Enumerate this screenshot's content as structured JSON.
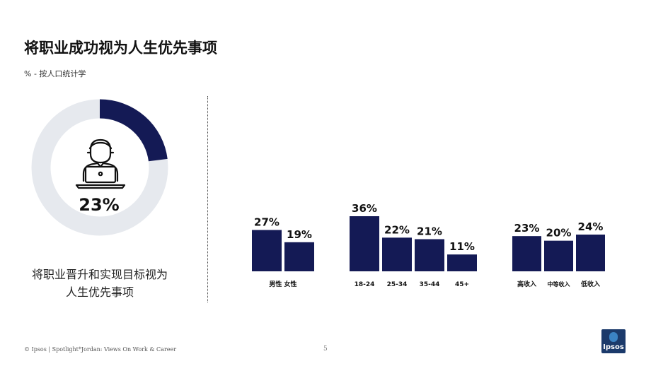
{
  "header": {
    "title": "将职业成功视为人生优先事项",
    "subtitle": "% - 按人口统计学"
  },
  "donut": {
    "value_label": "23%",
    "value": 23,
    "caption_line1": "将职业晋升和实现目标视为",
    "caption_line2": "人生优先事项",
    "icon": "person-at-laptop-icon"
  },
  "footer": {
    "text": "© Ipsos | Spotlight*Jordan: Views On Work & Career",
    "page_number": "5"
  },
  "logo": {
    "text": "Ipsos"
  },
  "colors": {
    "bar": "#141a55",
    "donut_fill": "#141a55",
    "donut_track": "#e6e9ee",
    "logo_bg": "#1b3a6b"
  },
  "chart_data": [
    {
      "type": "pie",
      "values": [
        23,
        77
      ],
      "labels": [
        "23%",
        ""
      ]
    },
    {
      "type": "bar",
      "categories": [
        "男性",
        "女性"
      ],
      "values": [
        27,
        19
      ],
      "labels": [
        "27%",
        "19%"
      ],
      "ylim": [
        0,
        36
      ]
    },
    {
      "type": "bar",
      "categories": [
        "18-24",
        "25-34",
        "35-44",
        "45+"
      ],
      "values": [
        36,
        22,
        21,
        11
      ],
      "labels": [
        "36%",
        "22%",
        "21%",
        "11%"
      ],
      "ylim": [
        0,
        36
      ]
    },
    {
      "type": "bar",
      "categories": [
        "高收入",
        "中等收入",
        "低收入"
      ],
      "values": [
        23,
        20,
        24
      ],
      "labels": [
        "23%",
        "20%",
        "24%"
      ],
      "ylim": [
        0,
        36
      ]
    }
  ]
}
